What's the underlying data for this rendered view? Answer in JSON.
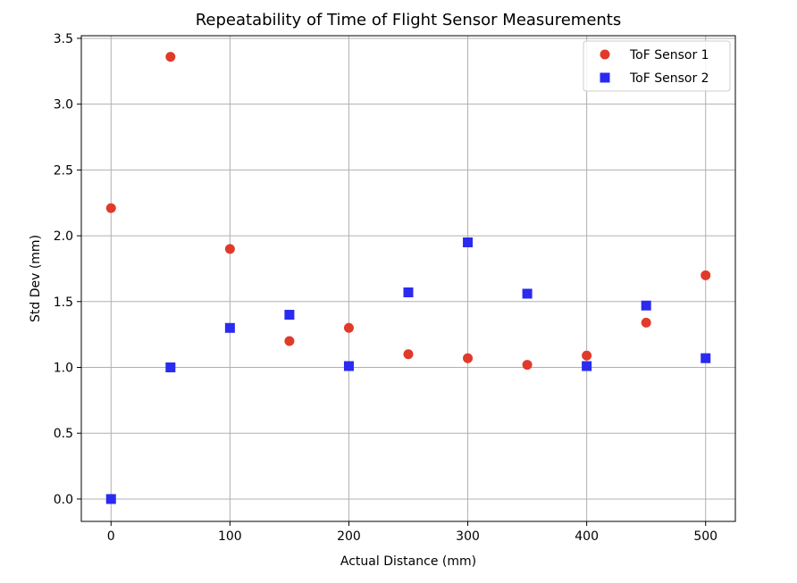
{
  "chart_data": {
    "type": "scatter",
    "title": "Repeatability of Time of Flight Sensor Measurements",
    "xlabel": "Actual Distance (mm)",
    "ylabel": "Std Dev (mm)",
    "xlim": [
      -25,
      525
    ],
    "ylim": [
      -0.17,
      3.52
    ],
    "x_ticks": [
      0,
      100,
      200,
      300,
      400,
      500
    ],
    "x_tick_labels": [
      "0",
      "100",
      "200",
      "300",
      "400",
      "500"
    ],
    "y_ticks": [
      0.0,
      0.5,
      1.0,
      1.5,
      2.0,
      2.5,
      3.0,
      3.5
    ],
    "y_tick_labels": [
      "0.0",
      "0.5",
      "1.0",
      "1.5",
      "2.0",
      "2.5",
      "3.0",
      "3.5"
    ],
    "grid": true,
    "legend_position": "top-right",
    "series": [
      {
        "name": "ToF Sensor 1",
        "marker": "circle",
        "color": "#e03a2a",
        "x": [
          0,
          50,
          100,
          150,
          200,
          250,
          300,
          350,
          400,
          450,
          500
        ],
        "y": [
          2.21,
          3.36,
          1.9,
          1.2,
          1.3,
          1.1,
          1.07,
          1.02,
          1.09,
          1.34,
          1.7
        ]
      },
      {
        "name": "ToF Sensor 2",
        "marker": "square",
        "color": "#2a2af0",
        "x": [
          0,
          50,
          100,
          150,
          200,
          250,
          300,
          350,
          400,
          450,
          500
        ],
        "y": [
          0.0,
          1.0,
          1.3,
          1.4,
          1.01,
          1.57,
          1.95,
          1.56,
          1.01,
          1.47,
          1.07
        ]
      }
    ]
  }
}
